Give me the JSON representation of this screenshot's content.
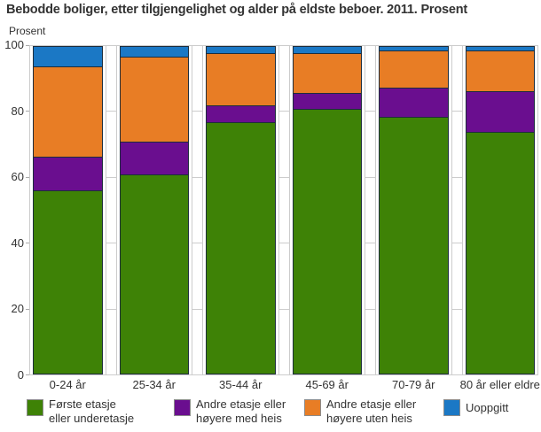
{
  "title": "Bebodde boliger, etter tilgjengelighet og alder på eldste beboer. 2011. Prosent",
  "y_axis_unit": "Prosent",
  "colors": {
    "grid": "#cccccc",
    "panel_border": "#cccccc",
    "bar_outline": "#1d2d3c",
    "text": "#333333",
    "legend_swatch_border": "#8c8c8c"
  },
  "chart_data": {
    "type": "bar",
    "stacked": true,
    "orientation": "vertical",
    "title": "Bebodde boliger, etter tilgjengelighet og alder på eldste beboer. 2011. Prosent",
    "xlabel": "",
    "ylabel": "Prosent",
    "ylim": [
      0,
      100
    ],
    "yticks": [
      0,
      20,
      40,
      60,
      80,
      100
    ],
    "grid": true,
    "legend_position": "bottom",
    "categories": [
      "0-24 år",
      "25-34 år",
      "35-44 år",
      "45-69 år",
      "70-79 år",
      "80 år eller eldre"
    ],
    "series": [
      {
        "name": "Første etasje eller underetasje",
        "label_lines": [
          "Første etasje",
          "eller underetasje"
        ],
        "color": "#3E8206",
        "values": [
          56,
          61,
          77,
          81,
          78.5,
          74
        ]
      },
      {
        "name": "Andre etasje eller høyere med heis",
        "label_lines": [
          "Andre etasje eller",
          "høyere med heis"
        ],
        "color": "#6A0E8F",
        "values": [
          10.5,
          10,
          5,
          5,
          9,
          12.5
        ]
      },
      {
        "name": "Andre etasje eller høyere uten heis",
        "label_lines": [
          "Andre etasje eller",
          "høyere uten heis"
        ],
        "color": "#E87D25",
        "values": [
          27.5,
          26,
          16,
          12,
          11.5,
          12.5
        ]
      },
      {
        "name": "Uoppgitt",
        "label_lines": [
          "Uoppgitt"
        ],
        "color": "#1B78C5",
        "values": [
          6,
          3,
          2,
          2,
          1,
          1
        ]
      }
    ],
    "legend_x_positions": [
      30,
      196,
      343,
      500
    ]
  }
}
